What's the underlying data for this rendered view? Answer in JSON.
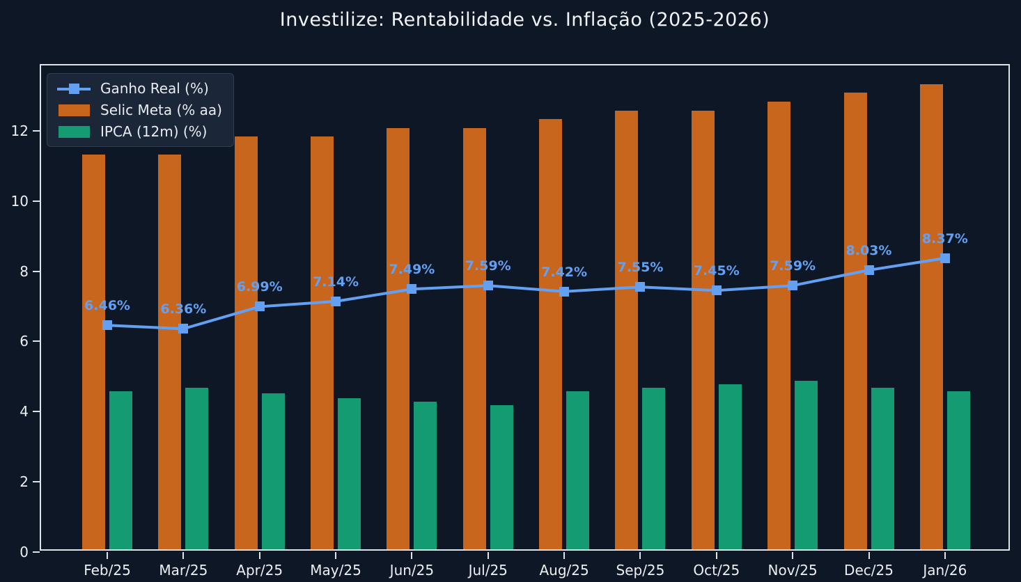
{
  "title": "Investilize: Rentabilidade vs. Inflação (2025-2026)",
  "colors": {
    "background": "#0e1726",
    "plot_border": "#dfe3e9",
    "text": "#edeff2",
    "selic_orange": "#c9661e",
    "ipca_green": "#149b72",
    "ganho_blue": "#64a0f2"
  },
  "legend": {
    "items": [
      {
        "label": "Ganho Real (%)",
        "series": "ganho_real",
        "sample": "line"
      },
      {
        "label": "Selic Meta (% aa)",
        "series": "selic",
        "sample": "bar"
      },
      {
        "label": "IPCA (12m) (%)",
        "series": "ipca",
        "sample": "bar"
      }
    ]
  },
  "chart_data": {
    "type": "bar+line",
    "title": "Investilize: Rentabilidade vs. Inflação (2025-2026)",
    "categories": [
      "Feb/25",
      "Mar/25",
      "Apr/25",
      "May/25",
      "Jun/25",
      "Jul/25",
      "Aug/25",
      "Sep/25",
      "Oct/25",
      "Nov/25",
      "Dec/25",
      "Jan/26"
    ],
    "series": [
      {
        "name": "Selic Meta (% aa)",
        "type": "bar",
        "color_key": "selic_orange",
        "values": [
          11.25,
          11.25,
          11.75,
          11.75,
          12.0,
          12.0,
          12.25,
          12.5,
          12.5,
          12.75,
          13.0,
          13.25
        ]
      },
      {
        "name": "IPCA (12m) (%)",
        "type": "bar",
        "color_key": "ipca_green",
        "values": [
          4.5,
          4.6,
          4.45,
          4.3,
          4.2,
          4.1,
          4.5,
          4.6,
          4.7,
          4.8,
          4.6,
          4.5
        ]
      },
      {
        "name": "Ganho Real (%)",
        "type": "line",
        "color_key": "ganho_blue",
        "marker": "square",
        "values": [
          6.46,
          6.36,
          6.99,
          7.14,
          7.49,
          7.59,
          7.42,
          7.55,
          7.45,
          7.59,
          8.03,
          8.37
        ],
        "point_labels": [
          "6.46%",
          "6.36%",
          "6.99%",
          "7.14%",
          "7.49%",
          "7.59%",
          "7.42%",
          "7.55%",
          "7.45%",
          "7.59%",
          "8.03%",
          "8.37%"
        ]
      }
    ],
    "xlabel": "",
    "ylabel": "",
    "yticks": [
      0,
      2,
      4,
      6,
      8,
      10,
      12
    ],
    "ytick_labels": [
      "0",
      "2",
      "4",
      "6",
      "8",
      "10",
      "12"
    ],
    "ylim": [
      0,
      13.86
    ],
    "grid": false,
    "legend_position": "upper left",
    "background": "dark"
  }
}
